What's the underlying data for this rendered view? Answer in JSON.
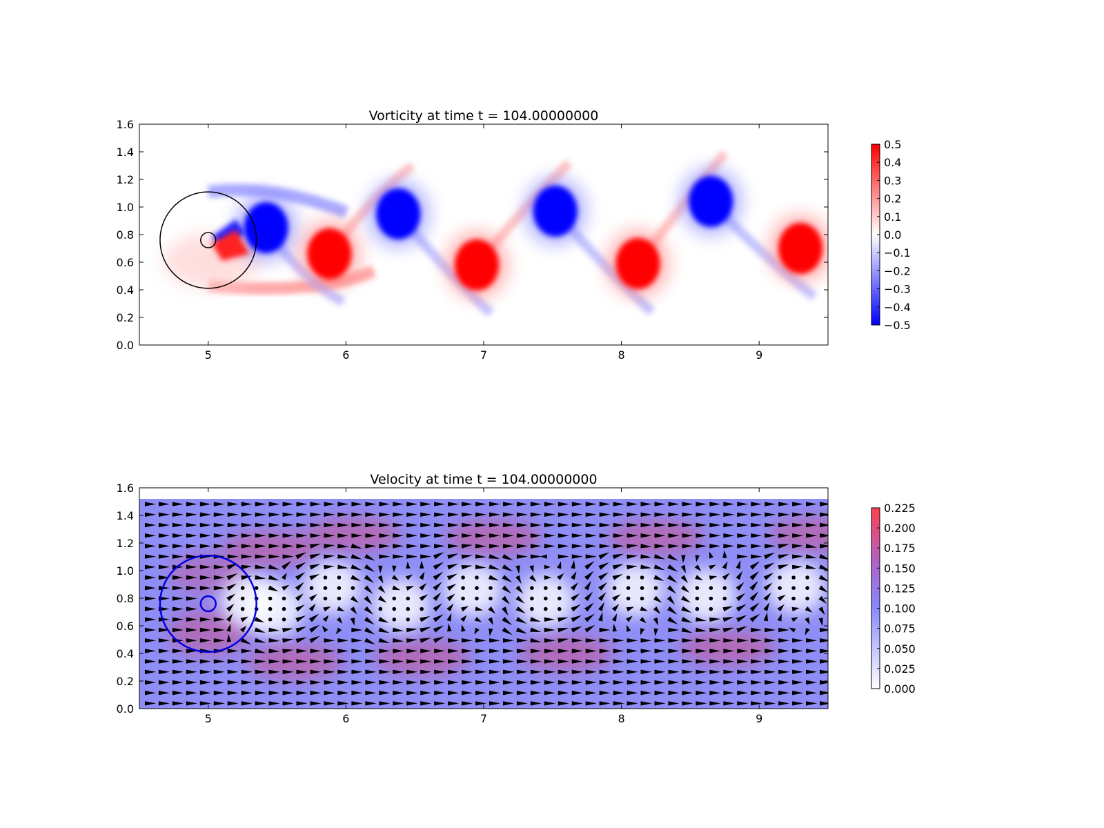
{
  "chart_data": [
    {
      "type": "heatmap",
      "title": "Vorticity at time t =   104.00000000",
      "xlabel": "",
      "ylabel": "",
      "xlim": [
        4.5,
        9.5
      ],
      "ylim": [
        0.0,
        1.6
      ],
      "xticks": [
        "5",
        "6",
        "7",
        "8",
        "9"
      ],
      "xtick_values": [
        5,
        6,
        7,
        8,
        9
      ],
      "yticks": [
        "0.0",
        "0.2",
        "0.4",
        "0.6",
        "0.8",
        "1.0",
        "1.2",
        "1.4",
        "1.6"
      ],
      "ytick_values": [
        0.0,
        0.2,
        0.4,
        0.6,
        0.8,
        1.0,
        1.2,
        1.4,
        1.6
      ],
      "colormap": "bwr",
      "colorbar": {
        "range": [
          -0.5,
          0.5
        ],
        "labels": [
          "0.5",
          "0.4",
          "0.3",
          "0.2",
          "0.1",
          "0.0",
          "−0.1",
          "−0.2",
          "−0.3",
          "−0.4",
          "−0.5"
        ],
        "values": [
          0.5,
          0.4,
          0.3,
          0.2,
          0.1,
          0.0,
          -0.1,
          -0.2,
          -0.3,
          -0.4,
          -0.5
        ]
      },
      "obstacle": {
        "center": [
          5.0,
          0.76
        ],
        "radius_outer": 0.35,
        "radius_inner": 0.055,
        "outer_color": "#000000",
        "inner_color": "#000000"
      },
      "positive_color": "#ff0000",
      "negative_color": "#0000ff",
      "vortices": [
        {
          "x": 5.42,
          "y": 0.85,
          "sign": -1
        },
        {
          "x": 5.88,
          "y": 0.66,
          "sign": 1
        },
        {
          "x": 6.38,
          "y": 0.95,
          "sign": -1
        },
        {
          "x": 6.95,
          "y": 0.58,
          "sign": 1
        },
        {
          "x": 7.52,
          "y": 0.97,
          "sign": -1
        },
        {
          "x": 8.12,
          "y": 0.59,
          "sign": 1
        },
        {
          "x": 8.65,
          "y": 1.04,
          "sign": -1
        },
        {
          "x": 9.3,
          "y": 0.7,
          "sign": 1
        }
      ]
    },
    {
      "type": "heatmap",
      "title": "Velocity at time t =   104.00000000",
      "xlabel": "",
      "ylabel": "",
      "xlim": [
        4.5,
        9.5
      ],
      "ylim": [
        0.0,
        1.6
      ],
      "xticks": [
        "5",
        "6",
        "7",
        "8",
        "9"
      ],
      "xtick_values": [
        5,
        6,
        7,
        8,
        9
      ],
      "yticks": [
        "0.0",
        "0.2",
        "0.4",
        "0.6",
        "0.8",
        "1.0",
        "1.2",
        "1.4",
        "1.6"
      ],
      "ytick_values": [
        0.0,
        0.2,
        0.4,
        0.6,
        0.8,
        1.0,
        1.2,
        1.4,
        1.6
      ],
      "field_ylim": [
        0.0,
        1.52
      ],
      "colormap": "white-blue-red",
      "colorbar": {
        "range": [
          0.0,
          0.225
        ],
        "labels": [
          "0.225",
          "0.200",
          "0.175",
          "0.150",
          "0.125",
          "0.100",
          "0.075",
          "0.050",
          "0.025",
          "0.000"
        ],
        "values": [
          0.225,
          0.2,
          0.175,
          0.15,
          0.125,
          0.1,
          0.075,
          0.05,
          0.025,
          0.0
        ]
      },
      "quiver": true,
      "obstacle": {
        "center": [
          5.0,
          0.76
        ],
        "radius_outer": 0.35,
        "radius_inner": 0.055,
        "outer_color": "#0000dd",
        "inner_color": "#0000dd"
      },
      "wake_vortices": [
        {
          "x": 5.3,
          "y": 0.78
        },
        {
          "x": 5.48,
          "y": 0.72
        },
        {
          "x": 5.9,
          "y": 0.88
        },
        {
          "x": 6.4,
          "y": 0.75
        },
        {
          "x": 6.92,
          "y": 0.86
        },
        {
          "x": 7.45,
          "y": 0.78
        },
        {
          "x": 8.1,
          "y": 0.86
        },
        {
          "x": 8.62,
          "y": 0.82
        },
        {
          "x": 9.27,
          "y": 0.88
        }
      ]
    }
  ]
}
